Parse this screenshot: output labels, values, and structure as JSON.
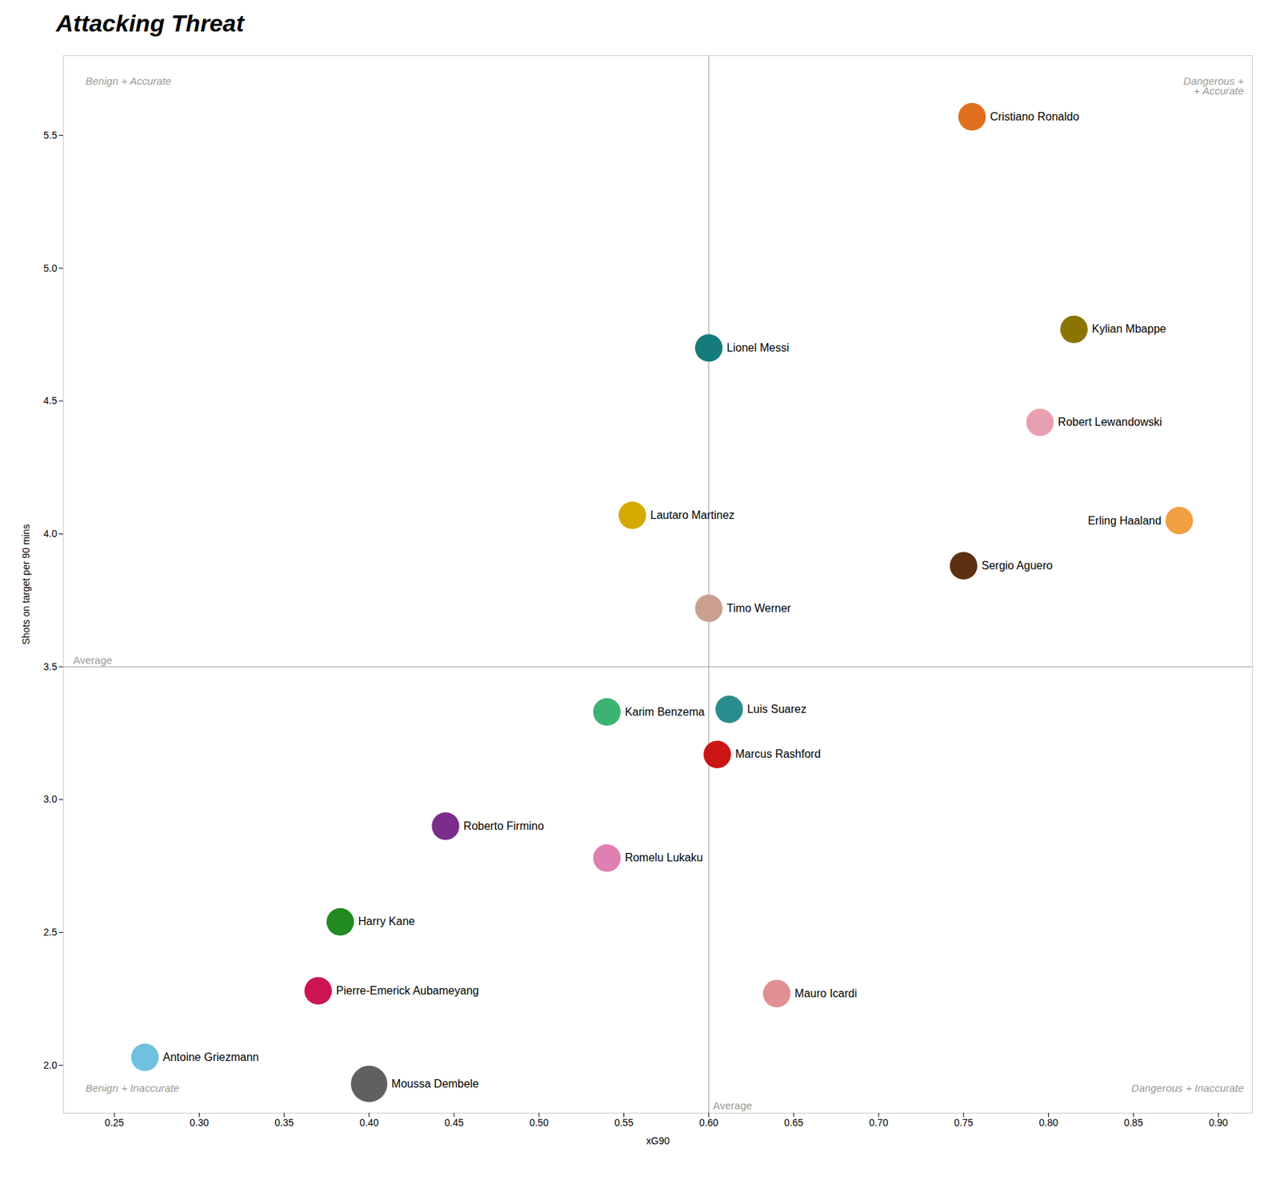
{
  "chart_data": {
    "type": "scatter",
    "title": "Attacking Threat",
    "xlabel": "xG90",
    "ylabel": "Shots on target per 90 mins",
    "xlim": [
      0.22,
      0.92
    ],
    "ylim": [
      1.82,
      5.8
    ],
    "xticks": [
      0.25,
      {
        "value": 0.3,
        "label": "0.30"
      },
      0.35,
      {
        "value": 0.4,
        "label": "0.40"
      },
      0.45,
      {
        "value": 0.5,
        "label": "0.50"
      },
      0.55,
      {
        "value": 0.6,
        "label": "0.60"
      },
      0.65,
      {
        "value": 0.7,
        "label": "0.70"
      },
      0.75,
      {
        "value": 0.8,
        "label": "0.80"
      },
      0.85,
      {
        "value": 0.9,
        "label": "0.90"
      }
    ],
    "yticks": [
      {
        "value": 2.0,
        "label": "2.0"
      },
      2.5,
      {
        "value": 3.0,
        "label": "3.0"
      },
      3.5,
      {
        "value": 4.0,
        "label": "4.0"
      },
      4.5,
      {
        "value": 5.0,
        "label": "5.0"
      },
      5.5
    ],
    "grid": false,
    "point_labels": [
      "Cristiano Ronaldo",
      "Lionel Messi",
      "Kylian Mbappe",
      "Robert Lewandowski",
      "Lautaro Martinez",
      "Erling Haaland",
      "Sergio Aguero",
      "Timo Werner",
      "Karim Benzema",
      "Luis Suarez",
      "Marcus Rashford",
      "Roberto Firmino",
      "Romelu Lukaku",
      "Harry Kane",
      "Pierre-Emerick Aubameyang",
      "Antoine Griezmann",
      "Moussa Dembele",
      "Mauro Icardi"
    ],
    "x": [
      0.755,
      0.6,
      0.815,
      0.795,
      0.555,
      0.877,
      0.75,
      0.6,
      0.54,
      0.612,
      0.605,
      0.445,
      0.54,
      0.383,
      0.37,
      0.268,
      0.4,
      0.64
    ],
    "values": [
      5.57,
      4.7,
      4.77,
      4.42,
      4.07,
      4.05,
      3.88,
      3.72,
      3.33,
      3.34,
      3.17,
      2.9,
      2.78,
      2.54,
      2.28,
      2.03,
      1.93,
      2.27
    ],
    "colors": [
      "#E07020",
      "#167B7B",
      "#8B7500",
      "#E8A0B0",
      "#D4AA00",
      "#F0A040",
      "#5C3010",
      "#C9A090",
      "#3CB371",
      "#2A8C8C",
      "#CC1515",
      "#7B2D8B",
      "#E080B0",
      "#228B22",
      "#CC1550",
      "#70C0E0",
      "#606060",
      "#E09090"
    ],
    "sizes": [
      800,
      800,
      800,
      800,
      800,
      800,
      800,
      800,
      800,
      800,
      800,
      800,
      800,
      800,
      800,
      800,
      1400,
      800
    ],
    "reference_lines": [
      {
        "axis": "x",
        "value": 0.6,
        "label": "Average",
        "color": "#999999"
      },
      {
        "axis": "y",
        "value": 3.5,
        "label": "Average",
        "color": "#999999"
      }
    ],
    "annotations": [
      {
        "text": "Benign + Accurate",
        "x": 0.233,
        "y": 5.72
      },
      {
        "text": "Dangerous +\n+ Accurate",
        "x": 0.915,
        "y": 5.72
      },
      {
        "text": "Benign + Inaccurate",
        "x": 0.233,
        "y": 1.9
      },
      {
        "text": "Dangerous + Inaccurate",
        "x": 0.915,
        "y": 1.9
      }
    ]
  }
}
